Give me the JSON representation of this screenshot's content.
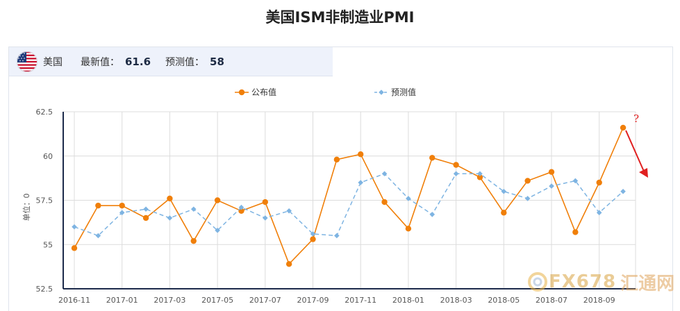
{
  "title": "美国ISM非制造业PMI",
  "info": {
    "country": "美国",
    "latest_label": "最新值：",
    "latest_value": "61.6",
    "forecast_label": "预测值：",
    "forecast_value": "58",
    "flag_icon": "us-flag-icon"
  },
  "annotation": {
    "text": "?",
    "color": "#e02020"
  },
  "watermark": {
    "logo": "fx678-logo-icon",
    "text": "FX678",
    "text2": "汇通网"
  },
  "chart_data": {
    "type": "line",
    "ylabel": "单位：0",
    "ylim": [
      52.5,
      62.5
    ],
    "yticks": [
      52.5,
      55,
      57.5,
      60,
      62.5
    ],
    "ytick_labels": [
      "52.5",
      "55",
      "57.5",
      "60",
      "62.5"
    ],
    "grid": true,
    "legend_position": "top-center",
    "x": [
      "2016-11",
      "2016-12",
      "2017-01",
      "2017-02",
      "2017-03",
      "2017-04",
      "2017-05",
      "2017-06",
      "2017-07",
      "2017-08",
      "2017-09",
      "2017-10",
      "2017-11",
      "2017-12",
      "2018-01",
      "2018-02",
      "2018-03",
      "2018-04",
      "2018-05",
      "2018-06",
      "2018-07",
      "2018-08",
      "2018-09",
      "2018-10"
    ],
    "xtick_labels": [
      "2016-11",
      "2017-01",
      "2017-03",
      "2017-05",
      "2017-07",
      "2017-09",
      "2017-11",
      "2018-01",
      "2018-03",
      "2018-05",
      "2018-07",
      "2018-09"
    ],
    "series": [
      {
        "name": "公布值",
        "color": "#f07f09",
        "style": "solid",
        "marker": "circle",
        "values": [
          54.8,
          57.2,
          57.2,
          56.5,
          57.6,
          55.2,
          57.5,
          56.9,
          57.4,
          53.9,
          55.3,
          59.8,
          60.1,
          57.4,
          55.9,
          59.9,
          59.5,
          58.8,
          56.8,
          58.6,
          59.1,
          55.7,
          58.5,
          61.6
        ]
      },
      {
        "name": "预测值",
        "color": "#7eb4e2",
        "style": "dashed",
        "marker": "diamond",
        "values": [
          56.0,
          55.5,
          56.8,
          57.0,
          56.5,
          57.0,
          55.8,
          57.1,
          56.5,
          56.9,
          55.6,
          55.5,
          58.5,
          59.0,
          57.6,
          56.7,
          59.0,
          59.0,
          58.0,
          57.6,
          58.3,
          58.6,
          56.8,
          58.0
        ]
      }
    ]
  }
}
